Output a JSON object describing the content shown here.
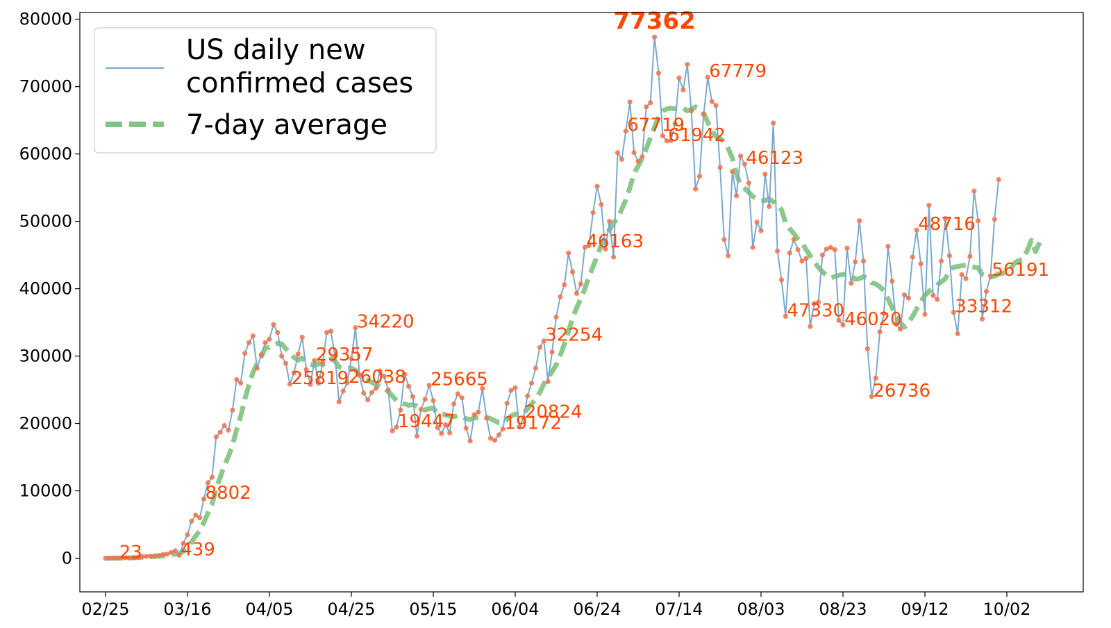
{
  "chart_data": {
    "type": "line",
    "x_tick_labels": [
      "02/25",
      "03/16",
      "04/05",
      "04/25",
      "05/15",
      "06/04",
      "06/24",
      "07/14",
      "08/03",
      "08/23",
      "09/12",
      "10/02"
    ],
    "y_tick_labels": [
      "0",
      "10000",
      "20000",
      "30000",
      "40000",
      "50000",
      "60000",
      "70000",
      "80000"
    ],
    "ylim": [
      -5000,
      81000
    ],
    "x_start_date": "02/25",
    "grid": false,
    "legend_position": "top-left",
    "series": [
      {
        "name": "US daily new confirmed cases",
        "color": "#7aa9d0",
        "marker_color": "#f0734a",
        "values": [
          0,
          10,
          20,
          23,
          25,
          60,
          40,
          80,
          150,
          220,
          280,
          300,
          350,
          400,
          550,
          600,
          850,
          1100,
          439,
          2200,
          3500,
          5500,
          6400,
          6000,
          8802,
          11200,
          12000,
          18000,
          18700,
          19700,
          19000,
          22000,
          26500,
          26000,
          30400,
          32000,
          33000,
          28200,
          30200,
          32000,
          32500,
          34700,
          33500,
          30000,
          28900,
          25819,
          27500,
          30300,
          32800,
          28000,
          25800,
          29357,
          26000,
          29000,
          33500,
          33700,
          30000,
          23200,
          24800,
          26038,
          29600,
          34220,
          27200,
          24500,
          23500,
          24600,
          25200,
          27800,
          27000,
          25000,
          18900,
          19447,
          22000,
          27300,
          25500,
          24000,
          18100,
          22100,
          23600,
          25665,
          23400,
          19400,
          18500,
          19800,
          18600,
          22900,
          24400,
          23800,
          19300,
          17400,
          21300,
          21700,
          25200,
          20800,
          17800,
          17500,
          18300,
          19172,
          23000,
          24900,
          25300,
          19500,
          20824,
          24100,
          26000,
          28200,
          31300,
          32254,
          26200,
          30600,
          35800,
          38800,
          40600,
          45300,
          42500,
          39300,
          40700,
          46163,
          46400,
          51300,
          55200,
          52500,
          45900,
          50000,
          44700,
          60200,
          59200,
          63400,
          67719,
          60200,
          58900,
          59600,
          67000,
          67600,
          77362,
          72000,
          62700,
          61942,
          62000,
          64500,
          71300,
          69500,
          73300,
          66400,
          54800,
          56700,
          65900,
          71400,
          67779,
          67200,
          58000,
          47300,
          44900,
          57400,
          53800,
          59700,
          58500,
          55700,
          46123,
          49900,
          48600,
          57000,
          52200,
          64600,
          45600,
          41300,
          35900,
          45300,
          47330,
          45800,
          44100,
          44500,
          34400,
          37800,
          38000,
          45000,
          45900,
          46100,
          45800,
          35300,
          34600,
          46020,
          40800,
          44000,
          50100,
          44100,
          31100,
          24000,
          26736,
          33600,
          36300,
          46300,
          41100,
          34700,
          34000,
          39100,
          38600,
          44700,
          48716,
          43700,
          36200,
          52400,
          39000,
          38400,
          44100,
          50400,
          44900,
          36500,
          33312,
          42100,
          41500,
          44800,
          54500,
          50100,
          35500,
          39600,
          41900,
          50300,
          56191
        ]
      },
      {
        "name": "7-day average",
        "color": "#3fa33f",
        "values": [
          0,
          5,
          10,
          15,
          20,
          30,
          40,
          60,
          90,
          130,
          170,
          210,
          250,
          290,
          340,
          390,
          480,
          600,
          700,
          1000,
          1500,
          2400,
          3300,
          4100,
          5300,
          6700,
          8000,
          10300,
          12000,
          13800,
          15100,
          16800,
          19100,
          21100,
          23600,
          25700,
          27600,
          28900,
          29900,
          31200,
          31300,
          31700,
          31900,
          31800,
          31100,
          30400,
          29800,
          29400,
          29700,
          29200,
          28800,
          28600,
          28900,
          28700,
          29100,
          29600,
          29300,
          28400,
          28200,
          28200,
          28200,
          27900,
          27100,
          26700,
          26400,
          26100,
          25800,
          25500,
          25300,
          24700,
          24100,
          23400,
          23000,
          22900,
          22700,
          22800,
          22600,
          22200,
          22000,
          22200,
          22300,
          21500,
          21400,
          21300,
          21100,
          21000,
          21200,
          21000,
          20700,
          20600,
          20800,
          20900,
          21000,
          20900,
          20700,
          20400,
          20100,
          20100,
          20600,
          21100,
          21400,
          21300,
          21400,
          22200,
          22900,
          23600,
          24600,
          25900,
          26800,
          27700,
          28700,
          30100,
          31800,
          33700,
          35600,
          37200,
          38500,
          40000,
          41800,
          43300,
          44800,
          46500,
          47700,
          48700,
          49800,
          50400,
          51800,
          53200,
          55000,
          57100,
          58200,
          59400,
          60800,
          62400,
          64000,
          65500,
          66400,
          66700,
          66800,
          66700,
          66900,
          66800,
          66400,
          66600,
          67000,
          66700,
          66000,
          64700,
          63400,
          62600,
          62300,
          61800,
          60800,
          59400,
          57000,
          55400,
          54900,
          54300,
          53700,
          53300,
          53000,
          53100,
          53300,
          52900,
          52500,
          51700,
          49800,
          48900,
          48200,
          47400,
          46800,
          45800,
          44900,
          43900,
          43200,
          42500,
          42000,
          41600,
          41800,
          42000,
          42100,
          42200,
          41900,
          41400,
          41500,
          41800,
          41600,
          40900,
          40700,
          40300,
          39700,
          38500,
          37200,
          35900,
          35000,
          34300,
          35000,
          35900,
          37000,
          38100,
          39000,
          39600,
          40100,
          40600,
          41000,
          41500,
          42700,
          43200,
          43300,
          43400,
          43500,
          43300,
          43200,
          43100,
          42100,
          41900,
          41700,
          41900,
          42200,
          42300,
          42500,
          43000,
          43900,
          44200,
          44400,
          45700,
          47200,
          45500,
          46900
        ]
      }
    ],
    "annotations": [
      {
        "label": "23",
        "index": 3
      },
      {
        "label": "439",
        "index": 18
      },
      {
        "label": "8802",
        "index": 24
      },
      {
        "label": "25819",
        "index": 45
      },
      {
        "label": "29357",
        "index": 51
      },
      {
        "label": "26038",
        "index": 59
      },
      {
        "label": "34220",
        "index": 61
      },
      {
        "label": "19447",
        "index": 71
      },
      {
        "label": "25665",
        "index": 79
      },
      {
        "label": "19172",
        "index": 97
      },
      {
        "label": "20824",
        "index": 102
      },
      {
        "label": "32254",
        "index": 107
      },
      {
        "label": "46163",
        "index": 117
      },
      {
        "label": "67719",
        "index": 127
      },
      {
        "label": "77362",
        "index": 134,
        "peak": true
      },
      {
        "label": "61942",
        "index": 137
      },
      {
        "label": "67779",
        "index": 147
      },
      {
        "label": "46123",
        "index": 156
      },
      {
        "label": "47330",
        "index": 166
      },
      {
        "label": "46020",
        "index": 180
      },
      {
        "label": "26736",
        "index": 187
      },
      {
        "label": "48716",
        "index": 198
      },
      {
        "label": "33312",
        "index": 207
      },
      {
        "label": "56191",
        "index": 216
      }
    ]
  }
}
